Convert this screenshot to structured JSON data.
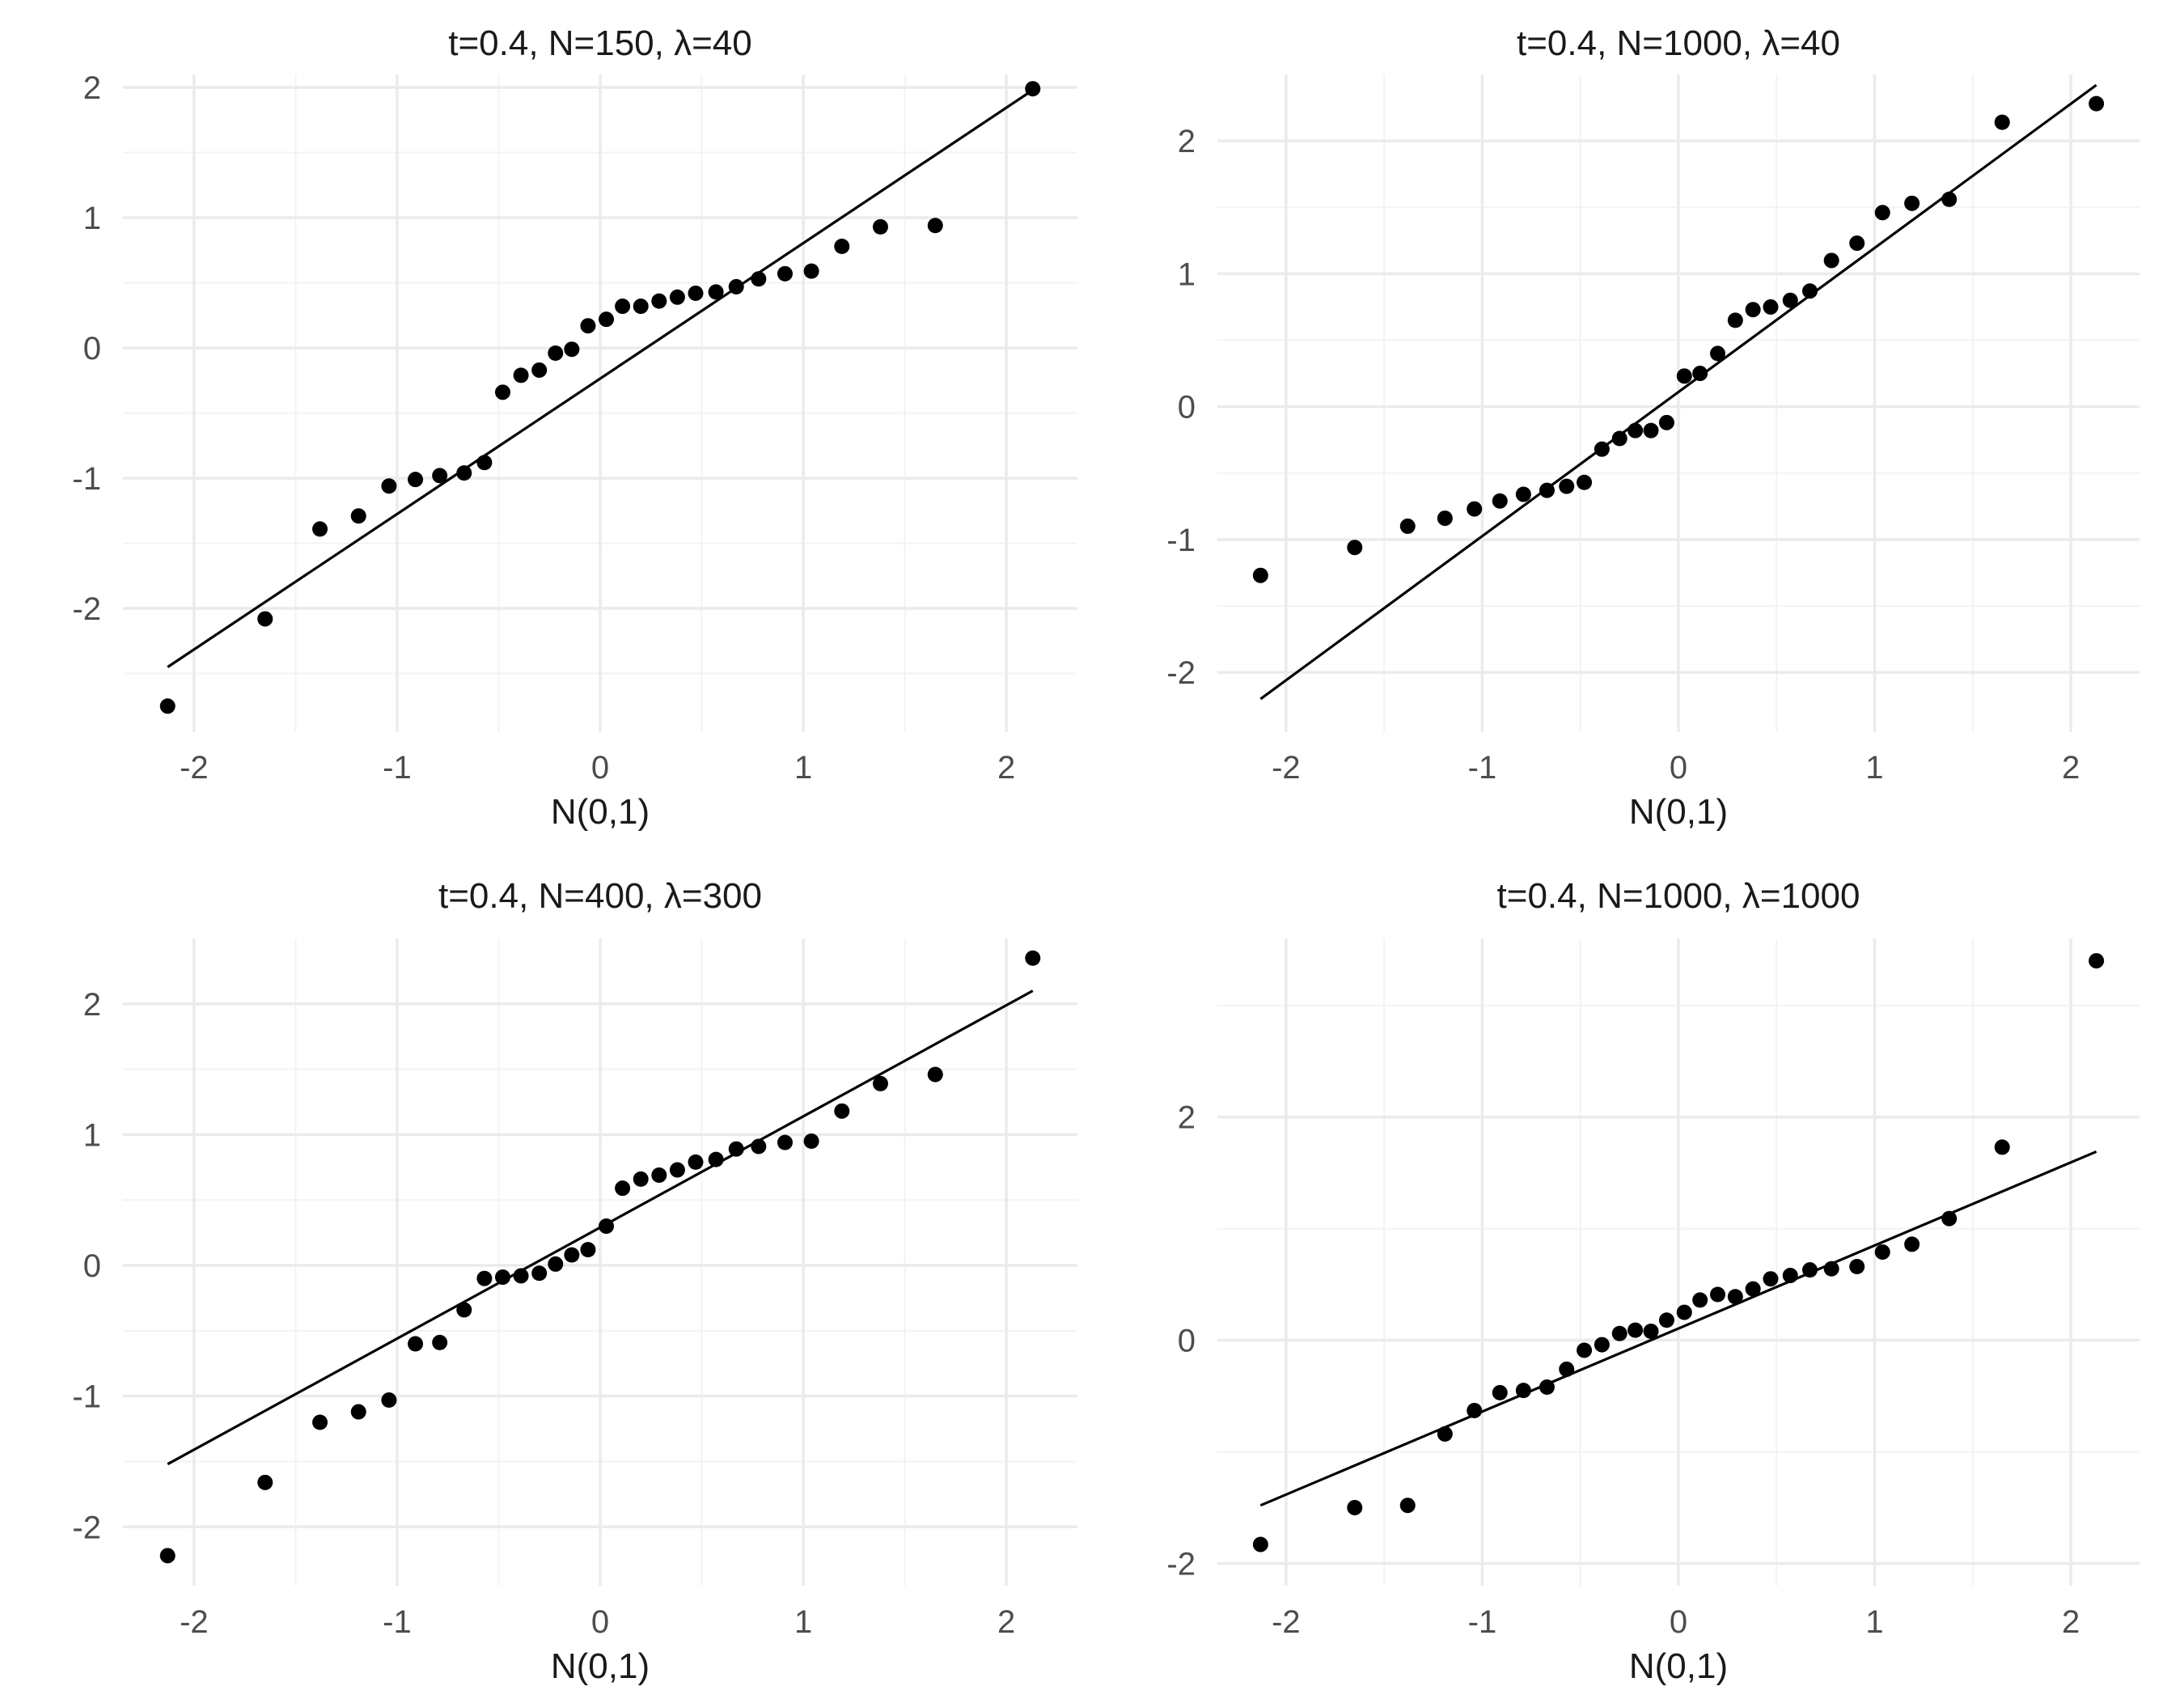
{
  "chart_data": [
    {
      "type": "scatter",
      "title": "t=0.4, N=150, λ=40",
      "xlabel": "N(0,1)",
      "ylabel": "",
      "xlim": [
        -2.35,
        2.35
      ],
      "ylim": [
        -2.95,
        2.1
      ],
      "xticks": [
        -2,
        -1,
        0,
        1,
        2
      ],
      "xtick_labels": [
        "-2",
        "-1",
        "0",
        "1",
        "2"
      ],
      "yticks": [
        -2,
        -1,
        0,
        1,
        2
      ],
      "ytick_labels": [
        "-2",
        "-1",
        "0",
        "1",
        "2"
      ],
      "grid": true,
      "points": {
        "x": [
          -2.13,
          -1.65,
          -1.38,
          -1.19,
          -1.04,
          -0.91,
          -0.79,
          -0.67,
          -0.57,
          -0.48,
          -0.39,
          -0.3,
          -0.22,
          -0.14,
          -0.06,
          0.03,
          0.11,
          0.2,
          0.29,
          0.38,
          0.47,
          0.57,
          0.67,
          0.78,
          0.91,
          1.04,
          1.19,
          1.38,
          1.65,
          2.13
        ],
        "y": [
          -2.75,
          -2.08,
          -1.39,
          -1.29,
          -1.06,
          -1.01,
          -0.98,
          -0.96,
          -0.88,
          -0.34,
          -0.21,
          -0.17,
          -0.04,
          -0.01,
          0.17,
          0.22,
          0.32,
          0.32,
          0.36,
          0.39,
          0.42,
          0.43,
          0.47,
          0.53,
          0.57,
          0.59,
          0.78,
          0.93,
          0.94,
          1.99
        ]
      },
      "line": {
        "x": [
          -2.13,
          2.13
        ],
        "y": [
          -2.45,
          1.98
        ]
      }
    },
    {
      "type": "scatter",
      "title": "t=0.4, N=1000, λ=40",
      "xlabel": "N(0,1)",
      "ylabel": "",
      "xlim": [
        -2.35,
        2.35
      ],
      "ylim": [
        -2.45,
        2.5
      ],
      "xticks": [
        -2,
        -1,
        0,
        1,
        2
      ],
      "xtick_labels": [
        "-2",
        "-1",
        "0",
        "1",
        "2"
      ],
      "yticks": [
        -2,
        -1,
        0,
        1,
        2
      ],
      "ytick_labels": [
        "-2",
        "-1",
        "0",
        "1",
        "2"
      ],
      "grid": true,
      "points": {
        "x": [
          -2.13,
          -1.65,
          -1.38,
          -1.19,
          -1.04,
          -0.91,
          -0.79,
          -0.67,
          -0.57,
          -0.48,
          -0.39,
          -0.3,
          -0.22,
          -0.14,
          -0.06,
          0.03,
          0.11,
          0.2,
          0.29,
          0.38,
          0.47,
          0.57,
          0.67,
          0.78,
          0.91,
          1.04,
          1.19,
          1.38,
          1.65,
          2.13
        ],
        "y": [
          -1.27,
          -1.06,
          -0.9,
          -0.84,
          -0.77,
          -0.71,
          -0.66,
          -0.63,
          -0.6,
          -0.57,
          -0.32,
          -0.24,
          -0.18,
          -0.18,
          -0.12,
          0.23,
          0.25,
          0.4,
          0.65,
          0.73,
          0.75,
          0.8,
          0.87,
          1.1,
          1.23,
          1.46,
          1.53,
          1.56,
          2.14,
          2.28
        ]
      },
      "line": {
        "x": [
          -2.13,
          2.13
        ],
        "y": [
          -2.2,
          2.42
        ]
      }
    },
    {
      "type": "scatter",
      "title": "t=0.4, N=400, λ=300",
      "xlabel": "N(0,1)",
      "ylabel": "",
      "xlim": [
        -2.35,
        2.35
      ],
      "ylim": [
        -2.45,
        2.5
      ],
      "xticks": [
        -2,
        -1,
        0,
        1,
        2
      ],
      "xtick_labels": [
        "-2",
        "-1",
        "0",
        "1",
        "2"
      ],
      "yticks": [
        -2,
        -1,
        0,
        1,
        2
      ],
      "ytick_labels": [
        "-2",
        "-1",
        "0",
        "1",
        "2"
      ],
      "grid": true,
      "points": {
        "x": [
          -2.13,
          -1.65,
          -1.38,
          -1.19,
          -1.04,
          -0.91,
          -0.79,
          -0.67,
          -0.57,
          -0.48,
          -0.39,
          -0.3,
          -0.22,
          -0.14,
          -0.06,
          0.03,
          0.11,
          0.2,
          0.29,
          0.38,
          0.47,
          0.57,
          0.67,
          0.78,
          0.91,
          1.04,
          1.19,
          1.38,
          1.65,
          2.13
        ],
        "y": [
          -2.22,
          -1.66,
          -1.2,
          -1.12,
          -1.03,
          -0.6,
          -0.59,
          -0.34,
          -0.1,
          -0.09,
          -0.08,
          -0.06,
          0.01,
          0.08,
          0.12,
          0.3,
          0.59,
          0.66,
          0.69,
          0.73,
          0.79,
          0.81,
          0.89,
          0.91,
          0.94,
          0.95,
          1.18,
          1.39,
          1.46,
          2.35
        ]
      },
      "line": {
        "x": [
          -2.13,
          2.13
        ],
        "y": [
          -1.52,
          2.1
        ]
      }
    },
    {
      "type": "scatter",
      "title": "t=0.4, N=1000, λ=1000",
      "xlabel": "N(0,1)",
      "ylabel": "",
      "xlim": [
        -2.35,
        2.35
      ],
      "ylim": [
        -2.2,
        3.6
      ],
      "xticks": [
        -2,
        -1,
        0,
        1,
        2
      ],
      "xtick_labels": [
        "-2",
        "-1",
        "0",
        "1",
        "2"
      ],
      "yticks": [
        -2,
        0,
        2
      ],
      "ytick_labels": [
        "-2",
        "0",
        "2"
      ],
      "grid": true,
      "points": {
        "x": [
          -2.13,
          -1.65,
          -1.38,
          -1.19,
          -1.04,
          -0.91,
          -0.79,
          -0.67,
          -0.57,
          -0.48,
          -0.39,
          -0.3,
          -0.22,
          -0.14,
          -0.06,
          0.03,
          0.11,
          0.2,
          0.29,
          0.38,
          0.47,
          0.57,
          0.67,
          0.78,
          0.91,
          1.04,
          1.19,
          1.38,
          1.65,
          2.13
        ],
        "y": [
          -1.83,
          -1.5,
          -1.48,
          -0.84,
          -0.63,
          -0.47,
          -0.45,
          -0.42,
          -0.26,
          -0.09,
          -0.04,
          0.06,
          0.09,
          0.08,
          0.18,
          0.25,
          0.36,
          0.41,
          0.39,
          0.46,
          0.55,
          0.58,
          0.63,
          0.64,
          0.66,
          0.79,
          0.86,
          1.09,
          1.73,
          3.4
        ]
      },
      "line": {
        "x": [
          -2.13,
          2.13
        ],
        "y": [
          -1.48,
          1.69
        ]
      }
    }
  ]
}
